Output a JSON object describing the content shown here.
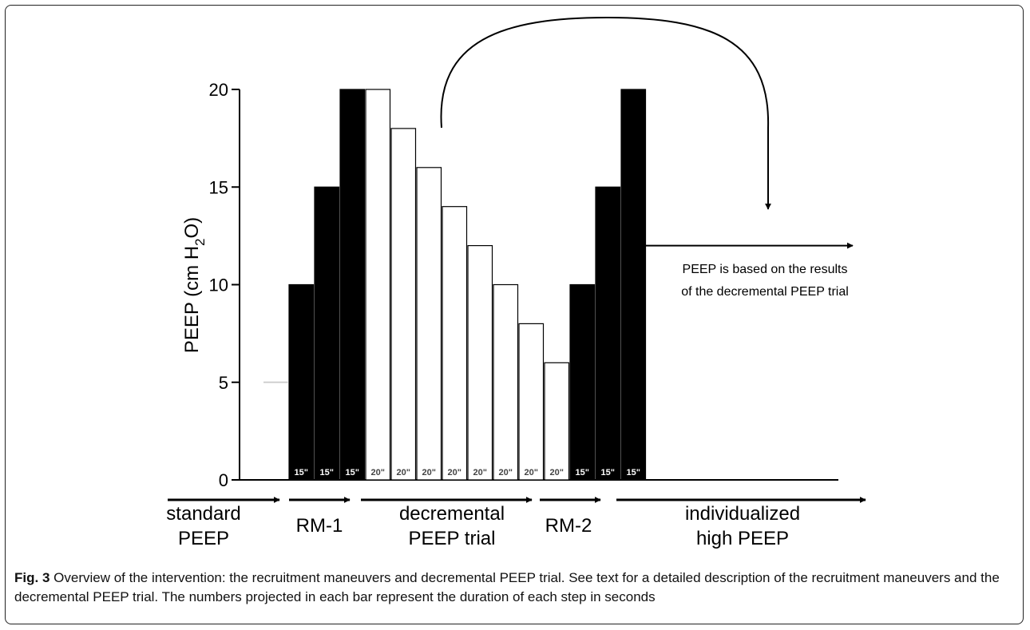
{
  "chart_data": {
    "type": "bar",
    "ylabel": "PEEP (cm H2O)",
    "ylabel_parts": [
      "PEEP (cm H",
      "2",
      "O)"
    ],
    "ylim": [
      0,
      20
    ],
    "yticks": [
      "0",
      "5",
      "10",
      "15",
      "20"
    ],
    "grid": false,
    "bars": [
      {
        "value": 5,
        "style": "line",
        "duration": ""
      },
      {
        "value": 10,
        "style": "black",
        "duration": "15\""
      },
      {
        "value": 15,
        "style": "black",
        "duration": "15\""
      },
      {
        "value": 20,
        "style": "black",
        "duration": "15\""
      },
      {
        "value": 20,
        "style": "white",
        "duration": "20\""
      },
      {
        "value": 18,
        "style": "white",
        "duration": "20\""
      },
      {
        "value": 16,
        "style": "white",
        "duration": "20\""
      },
      {
        "value": 14,
        "style": "white",
        "duration": "20\""
      },
      {
        "value": 12,
        "style": "white",
        "duration": "20\""
      },
      {
        "value": 10,
        "style": "white",
        "duration": "20\""
      },
      {
        "value": 8,
        "style": "white",
        "duration": "20\""
      },
      {
        "value": 6,
        "style": "white",
        "duration": "20\""
      },
      {
        "value": 10,
        "style": "black",
        "duration": "15\""
      },
      {
        "value": 15,
        "style": "black",
        "duration": "15\""
      },
      {
        "value": 20,
        "style": "black",
        "duration": "15\""
      }
    ],
    "individualized_level": 12,
    "annotation": [
      "PEEP is based on the results",
      "of the decremental PEEP trial"
    ],
    "phases": [
      {
        "line1": "standard",
        "line2": "PEEP"
      },
      {
        "line1": "RM-1",
        "line2": ""
      },
      {
        "line1": "decremental",
        "line2": "PEEP trial"
      },
      {
        "line1": "RM-2",
        "line2": ""
      },
      {
        "line1": "individualized",
        "line2": "high PEEP"
      }
    ],
    "colors": {
      "black_bar": "#000000",
      "white_bar": "#ffffff",
      "stroke": "#000000",
      "label_on_black": "#ffffff",
      "label_on_white": "#444444"
    }
  },
  "caption": {
    "label": "Fig. 3",
    "text": "Overview of the intervention: the recruitment maneuvers and decremental PEEP trial. See text for a detailed description of the recruitment maneuvers and the decremental PEEP trial. The numbers projected in each bar represent the duration of each step in seconds"
  }
}
